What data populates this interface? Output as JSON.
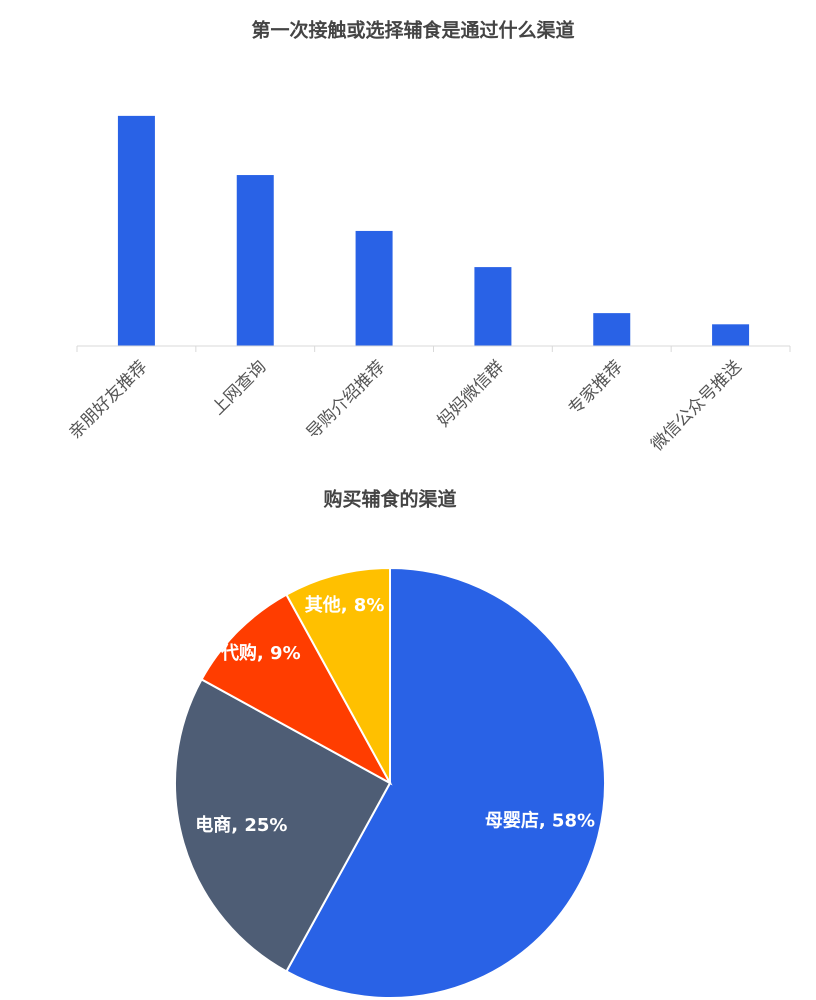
{
  "chart_data": [
    {
      "type": "bar",
      "title": "第一次接触或选择辅食是通过什么渠道",
      "categories": [
        "亲朋好友推荐",
        "上网查询",
        "导购介绍推荐",
        "妈妈微信群",
        "专家推荐",
        "微信公众号推送"
      ],
      "values": [
        35,
        26,
        17.5,
        12,
        5,
        3.3
      ],
      "color": "#2962e6",
      "ylim": [
        0,
        40
      ]
    },
    {
      "type": "pie",
      "title": "购买辅食的渠道",
      "values": [
        58,
        25,
        9,
        8
      ],
      "value_labels": [
        "母婴店, 58%",
        "电商, 25%",
        "代购, 9%",
        "其他, 8%"
      ],
      "colors": [
        "#2962e6",
        "#4e5d75",
        "#ff3d00",
        "#ffc000"
      ]
    }
  ]
}
